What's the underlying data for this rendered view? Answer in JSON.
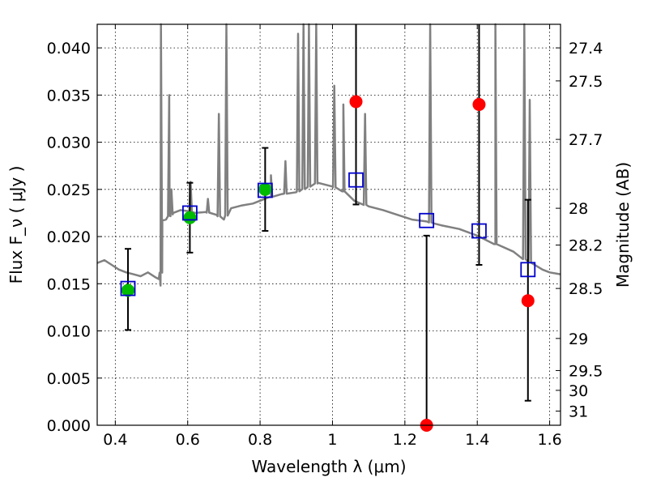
{
  "chart_data": {
    "type": "scatter",
    "xlabel": "Wavelength  λ (μm)",
    "ylabel": "Flux  F_ν  ( μJy )",
    "ylabel_right": "Magnitude (AB)",
    "xlim": [
      0.35,
      1.63
    ],
    "ylim": [
      0.0,
      0.0425
    ],
    "grid": true,
    "x_ticks": [
      0.4,
      0.6,
      0.8,
      1.0,
      1.2,
      1.4,
      1.6
    ],
    "x_tick_labels": [
      "0.4",
      "0.6",
      "0.8",
      "1",
      "1.2",
      "1.4",
      "1.6"
    ],
    "y_ticks": [
      0.0,
      0.005,
      0.01,
      0.015,
      0.02,
      0.025,
      0.03,
      0.035,
      0.04
    ],
    "y_tick_labels": [
      "0.000",
      "0.005",
      "0.010",
      "0.015",
      "0.020",
      "0.025",
      "0.030",
      "0.035",
      "0.040"
    ],
    "right_ticks": [
      {
        "label": "27.4",
        "flux": 0.04
      },
      {
        "label": "27.5",
        "flux": 0.0365
      },
      {
        "label": "27.7",
        "flux": 0.0303
      },
      {
        "label": "28",
        "flux": 0.023
      },
      {
        "label": "28.2",
        "flux": 0.0191
      },
      {
        "label": "28.5",
        "flux": 0.0145
      },
      {
        "label": "29",
        "flux": 0.0092
      },
      {
        "label": "29.5",
        "flux": 0.0058
      },
      {
        "label": "30",
        "flux": 0.0037
      },
      {
        "label": "31",
        "flux": 0.0015
      }
    ],
    "colors": {
      "model": "#808080",
      "detection": "#00bb00",
      "nondetection": "#ff0000",
      "model_band": "#0000cc",
      "errorbar": "#000000"
    },
    "model_spectrum": {
      "x": [
        0.35,
        0.37,
        0.39,
        0.41,
        0.43,
        0.45,
        0.47,
        0.49,
        0.51,
        0.52,
        0.525,
        0.53,
        0.54,
        0.55,
        0.56,
        0.58,
        0.6,
        0.62,
        0.65,
        0.68,
        0.7,
        0.72,
        0.75,
        0.78,
        0.8,
        0.83,
        0.86,
        0.9,
        0.93,
        0.96,
        1.0,
        1.03,
        1.06,
        1.1,
        1.14,
        1.18,
        1.22,
        1.26,
        1.28,
        1.3,
        1.35,
        1.4,
        1.45,
        1.5,
        1.52,
        1.55,
        1.58,
        1.6,
        1.63
      ],
      "y": [
        0.0172,
        0.0175,
        0.017,
        0.0165,
        0.0162,
        0.016,
        0.0158,
        0.0162,
        0.0157,
        0.0155,
        0.0148,
        0.0217,
        0.0218,
        0.0222,
        0.0225,
        0.0228,
        0.0227,
        0.0225,
        0.0226,
        0.0223,
        0.0218,
        0.023,
        0.0233,
        0.0235,
        0.0238,
        0.0242,
        0.0245,
        0.0247,
        0.0252,
        0.0257,
        0.0253,
        0.0248,
        0.0238,
        0.0232,
        0.0228,
        0.0223,
        0.0218,
        0.0216,
        0.0214,
        0.0212,
        0.0208,
        0.0201,
        0.0192,
        0.0184,
        0.0178,
        0.0172,
        0.0165,
        0.0162,
        0.016
      ]
    },
    "emission_lines": [
      {
        "x": 0.526,
        "peak": 0.0425
      },
      {
        "x": 0.549,
        "peak": 0.035
      },
      {
        "x": 0.555,
        "peak": 0.025
      },
      {
        "x": 0.608,
        "peak": 0.0258
      },
      {
        "x": 0.656,
        "peak": 0.024
      },
      {
        "x": 0.686,
        "peak": 0.033
      },
      {
        "x": 0.707,
        "peak": 0.0425
      },
      {
        "x": 0.83,
        "peak": 0.0265
      },
      {
        "x": 0.87,
        "peak": 0.028
      },
      {
        "x": 0.905,
        "peak": 0.0415
      },
      {
        "x": 0.92,
        "peak": 0.0425
      },
      {
        "x": 0.935,
        "peak": 0.0425
      },
      {
        "x": 0.955,
        "peak": 0.0425
      },
      {
        "x": 1.005,
        "peak": 0.036
      },
      {
        "x": 1.03,
        "peak": 0.034
      },
      {
        "x": 1.09,
        "peak": 0.033
      },
      {
        "x": 1.27,
        "peak": 0.0425
      },
      {
        "x": 1.45,
        "peak": 0.0425
      },
      {
        "x": 1.53,
        "peak": 0.0425
      },
      {
        "x": 1.545,
        "peak": 0.0345
      }
    ],
    "model_bands": [
      {
        "x": 0.435,
        "y": 0.0145
      },
      {
        "x": 0.606,
        "y": 0.0225
      },
      {
        "x": 0.814,
        "y": 0.0249
      },
      {
        "x": 1.065,
        "y": 0.026
      },
      {
        "x": 1.26,
        "y": 0.0217
      },
      {
        "x": 1.405,
        "y": 0.0206
      },
      {
        "x": 1.54,
        "y": 0.0165
      }
    ],
    "observations": [
      {
        "x": 0.435,
        "y": 0.0143,
        "yerr_low": 0.0101,
        "yerr_high": 0.0187,
        "detected": true
      },
      {
        "x": 0.606,
        "y": 0.022,
        "yerr_low": 0.0183,
        "yerr_high": 0.0257,
        "detected": true
      },
      {
        "x": 0.814,
        "y": 0.025,
        "yerr_low": 0.0206,
        "yerr_high": 0.0294,
        "detected": true
      },
      {
        "x": 1.065,
        "y": 0.0343,
        "yerr_low": 0.0234,
        "yerr_high": 0.0425,
        "detected": false
      },
      {
        "x": 1.26,
        "y": 0.0,
        "yerr_low": 0.0,
        "yerr_high": 0.0201,
        "detected": false
      },
      {
        "x": 1.405,
        "y": 0.034,
        "yerr_low": 0.017,
        "yerr_high": 0.0425,
        "detected": false
      },
      {
        "x": 1.54,
        "y": 0.0132,
        "yerr_low": 0.0026,
        "yerr_high": 0.0239,
        "detected": false
      }
    ]
  }
}
